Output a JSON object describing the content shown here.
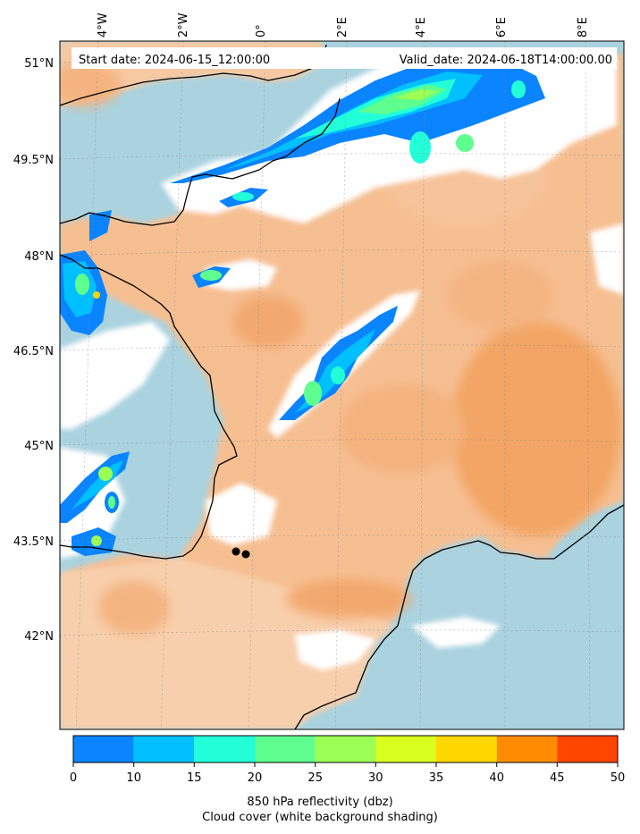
{
  "header": {
    "start_date": "Start date: 2024-06-15_12:00:00",
    "valid_date": "Valid_date: 2024-06-18T14:00:00.00"
  },
  "map": {
    "lon_labels": [
      "4°W",
      "2°W",
      "0°",
      "2°E",
      "4°E",
      "6°E",
      "8°E"
    ],
    "lat_labels": [
      "51°N",
      "49.5°N",
      "48°N",
      "46.5°N",
      "45°N",
      "43.5°N",
      "42°N"
    ],
    "colors": {
      "ocean": "#aad3df",
      "land_warm": "#f4a460",
      "land_light": "#f8d2b0",
      "cloud": "#ffffff",
      "coastline": "#000000"
    },
    "markers": [
      {
        "name": "point-a",
        "lon": 0.15,
        "lat": 43.38
      },
      {
        "name": "point-b",
        "lon": 0.4,
        "lat": 43.33
      }
    ]
  },
  "colorbar": {
    "ticks": [
      "0",
      "10",
      "15",
      "20",
      "25",
      "30",
      "35",
      "40",
      "45",
      "50"
    ],
    "colors": [
      "#0a84ff",
      "#00c0ff",
      "#22ffd8",
      "#5fff8f",
      "#9cff55",
      "#d8ff20",
      "#ffd700",
      "#ff8c00",
      "#ff4500"
    ],
    "label_line1": "850 hPa reflectivity (dbz)",
    "label_line2": "Cloud cover (white background shading)"
  }
}
